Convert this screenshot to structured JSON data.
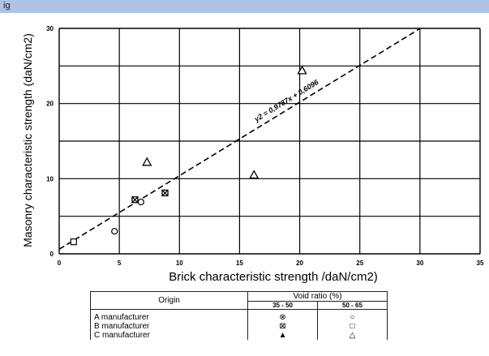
{
  "header": {
    "text": "ig"
  },
  "chart_data": {
    "type": "scatter",
    "title": "",
    "xlabel": "Brick characteristic strength /daN/cm2)",
    "ylabel": "Masonry characteristic strength (daN/cm2)",
    "xlim": [
      0,
      35
    ],
    "ylim": [
      0,
      30
    ],
    "x_ticks": [
      "0",
      "5",
      "10",
      "15",
      "20",
      "25",
      "30",
      "35"
    ],
    "y_ticks": [
      "0",
      "10",
      "20",
      "30"
    ],
    "grid": true,
    "equation_label": "y2 = 0,9787x + 0,6096",
    "trendline": {
      "slope": 0.9787,
      "intercept": 0.6096
    },
    "points": [
      {
        "x": 1.2,
        "y": 1.6,
        "marker": "square"
      },
      {
        "x": 4.6,
        "y": 3.0,
        "marker": "circle"
      },
      {
        "x": 6.3,
        "y": 7.2,
        "marker": "square-x"
      },
      {
        "x": 6.8,
        "y": 6.9,
        "marker": "circle"
      },
      {
        "x": 8.8,
        "y": 8.1,
        "marker": "square-x"
      },
      {
        "x": 7.3,
        "y": 12.2,
        "marker": "triangle"
      },
      {
        "x": 16.2,
        "y": 10.5,
        "marker": "triangle"
      },
      {
        "x": 20.2,
        "y": 24.4,
        "marker": "triangle"
      }
    ]
  },
  "legend_table": {
    "origin_header": "Origin",
    "void_header": "Void ratio (%)",
    "col1": "35 - 50",
    "col2": "50 - 65",
    "rows": [
      {
        "label": "A manufacturer",
        "s1": "⊗",
        "s2": "○"
      },
      {
        "label": "B manufacturer",
        "s1": "⊠",
        "s2": "□"
      },
      {
        "label": "C manufacturer",
        "s1": "▲",
        "s2": "△"
      }
    ]
  },
  "colors": {
    "header_bar": "#aec3e2",
    "axis": "#000000"
  }
}
